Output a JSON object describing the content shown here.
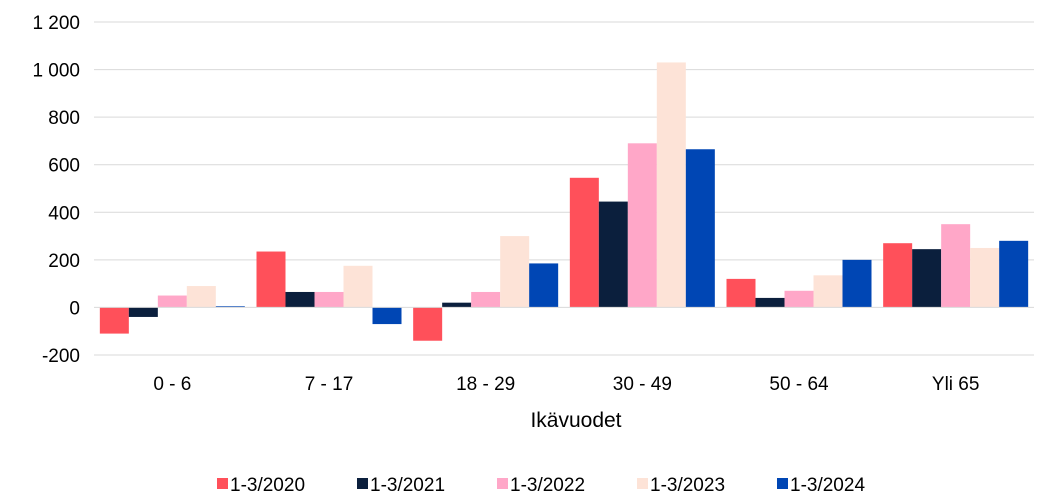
{
  "chart_data": {
    "type": "bar",
    "title": "",
    "xlabel": "Ikävuodet",
    "ylabel": "",
    "categories": [
      "0 - 6",
      "7 - 17",
      "18 - 29",
      "30 - 49",
      "50 - 64",
      "Yli 65"
    ],
    "series": [
      {
        "name": "1-3/2020",
        "color": "#ff505a",
        "values": [
          -110,
          235,
          -140,
          545,
          120,
          270
        ]
      },
      {
        "name": "1-3/2021",
        "color": "#0b1f3d",
        "values": [
          -40,
          65,
          20,
          445,
          40,
          245
        ]
      },
      {
        "name": "1-3/2022",
        "color": "#ffa7c8",
        "values": [
          50,
          65,
          65,
          690,
          70,
          350
        ]
      },
      {
        "name": "1-3/2023",
        "color": "#fde3d7",
        "values": [
          90,
          175,
          300,
          1030,
          135,
          250
        ]
      },
      {
        "name": "1-3/2024",
        "color": "#0046b4",
        "values": [
          5,
          -70,
          185,
          665,
          200,
          280
        ]
      }
    ],
    "ylim": [
      -200,
      1200
    ],
    "yticks": [
      -200,
      0,
      200,
      400,
      600,
      800,
      1000,
      1200
    ],
    "ytick_labels": [
      "-200",
      "0",
      "200",
      "400",
      "600",
      "800",
      "1 000",
      "1 200"
    ],
    "grid": true,
    "legend_position": "bottom"
  }
}
